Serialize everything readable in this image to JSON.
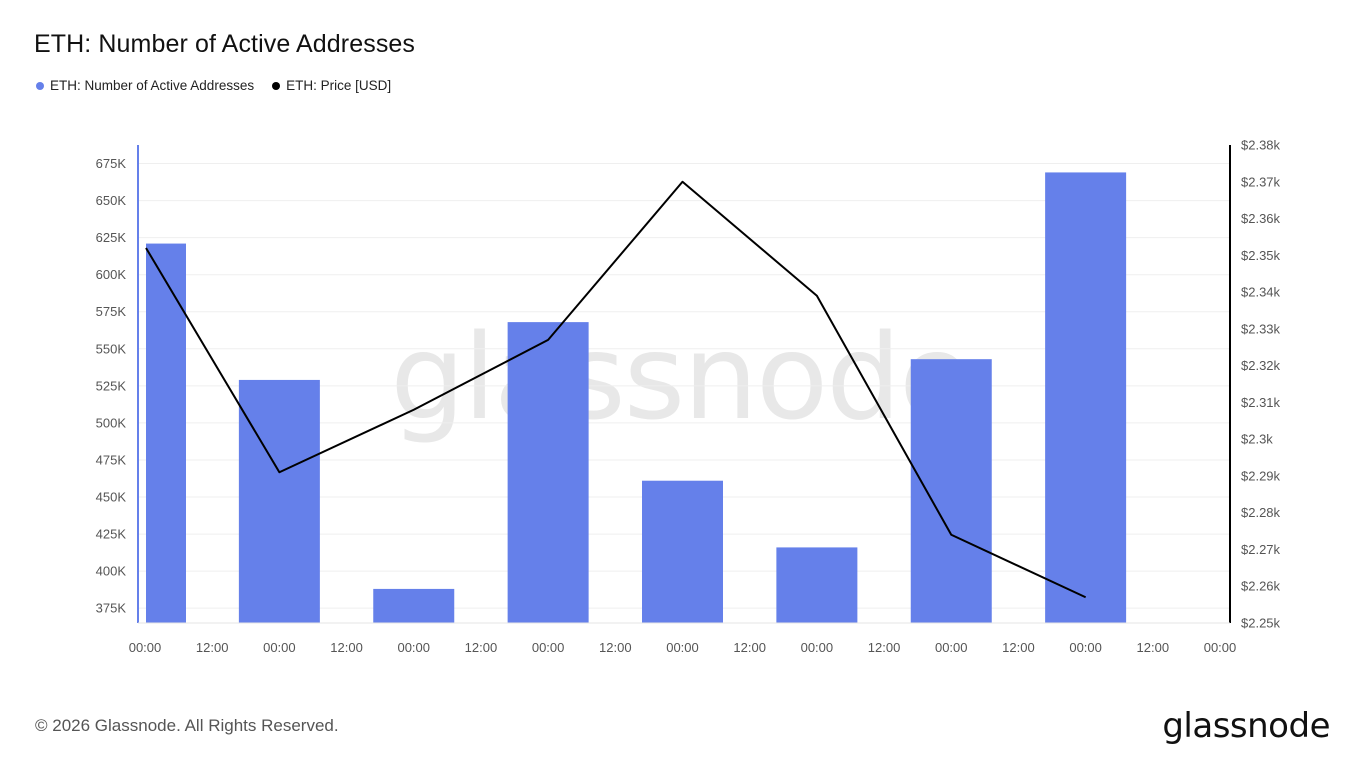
{
  "title": "ETH: Number of Active Addresses",
  "footer": "© 2026 Glassnode. All Rights Reserved.",
  "brand": "glassnode",
  "watermark": "glassnode",
  "legend": [
    {
      "label": "ETH: Number of Active Addresses",
      "color": "#6580ea"
    },
    {
      "label": "ETH: Price [USD]",
      "color": "#000000"
    }
  ],
  "chart_data": {
    "type": "bar",
    "x_tick_labels": [
      "00:00",
      "12:00",
      "00:00",
      "12:00",
      "00:00",
      "12:00",
      "00:00",
      "12:00",
      "00:00",
      "12:00",
      "00:00",
      "12:00",
      "00:00",
      "12:00",
      "00:00",
      "12:00",
      "00:00"
    ],
    "y_left": {
      "ylim": [
        365000,
        687500
      ],
      "ticks": [
        375000,
        400000,
        425000,
        450000,
        475000,
        500000,
        525000,
        550000,
        575000,
        600000,
        625000,
        650000,
        675000
      ],
      "tick_labels": [
        "375K",
        "400K",
        "425K",
        "450K",
        "475K",
        "500K",
        "525K",
        "550K",
        "575K",
        "600K",
        "625K",
        "650K",
        "675K"
      ]
    },
    "y_right": {
      "ylim": [
        2250,
        2380
      ],
      "ticks": [
        2250,
        2260,
        2270,
        2280,
        2290,
        2300,
        2310,
        2320,
        2330,
        2340,
        2350,
        2360,
        2370,
        2380
      ],
      "tick_labels": [
        "$2.25k",
        "$2.26k",
        "$2.27k",
        "$2.28k",
        "$2.29k",
        "$2.3k",
        "$2.31k",
        "$2.32k",
        "$2.33k",
        "$2.34k",
        "$2.35k",
        "$2.36k",
        "$2.37k",
        "$2.38k"
      ]
    },
    "series": [
      {
        "name": "ETH: Number of Active Addresses",
        "type": "bar",
        "axis": "left",
        "color": "#6580ea",
        "x": [
          0,
          1,
          2,
          3,
          4,
          5,
          6,
          7
        ],
        "values": [
          621000,
          529000,
          388000,
          568000,
          461000,
          416000,
          543000,
          669000
        ]
      },
      {
        "name": "ETH: Price [USD]",
        "type": "line",
        "axis": "right",
        "color": "#000000",
        "x": [
          0,
          1,
          2,
          3,
          4,
          5,
          6,
          7
        ],
        "values": [
          2352,
          2291,
          2308,
          2327,
          2370,
          2339,
          2274,
          2257
        ]
      }
    ],
    "grid": true,
    "legend_position": "top-left"
  }
}
